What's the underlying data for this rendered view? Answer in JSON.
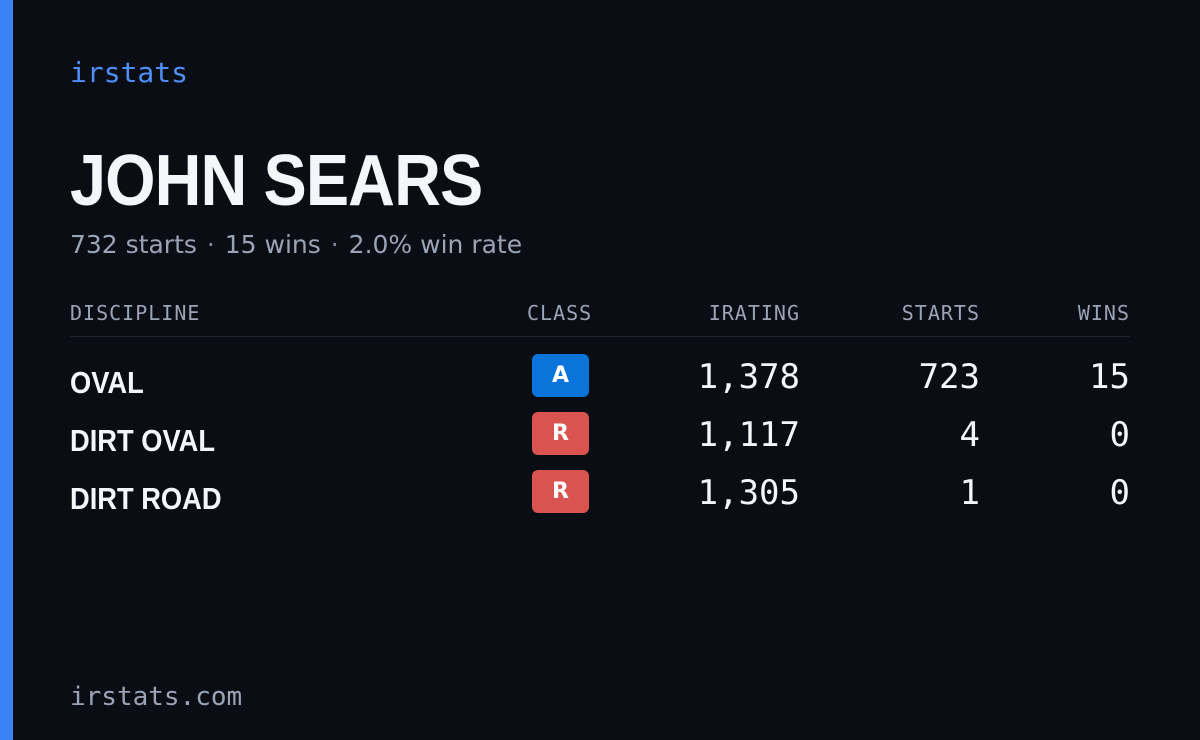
{
  "brand": "irstats",
  "driver": {
    "name": "JOHN SEARS",
    "summary": {
      "starts": "732 starts",
      "wins": "15 wins",
      "win_rate": "2.0% win rate",
      "separator": "·"
    }
  },
  "table": {
    "headers": {
      "discipline": "DISCIPLINE",
      "class": "CLASS",
      "irating": "IRATING",
      "starts": "STARTS",
      "wins": "WINS"
    },
    "rows": [
      {
        "discipline": "OVAL",
        "class": "A",
        "class_color": "#0a74da",
        "irating": "1,378",
        "starts": "723",
        "wins": "15"
      },
      {
        "discipline": "DIRT OVAL",
        "class": "R",
        "class_color": "#d9534f",
        "irating": "1,117",
        "starts": "4",
        "wins": "0"
      },
      {
        "discipline": "DIRT ROAD",
        "class": "R",
        "class_color": "#d9534f",
        "irating": "1,305",
        "starts": "1",
        "wins": "0"
      }
    ]
  },
  "footer": "irstats.com",
  "colors": {
    "background": "#0b0d14",
    "accent": "#3b82f6",
    "brand_text": "#4f8ef7",
    "muted_text": "#9aa4b5"
  }
}
